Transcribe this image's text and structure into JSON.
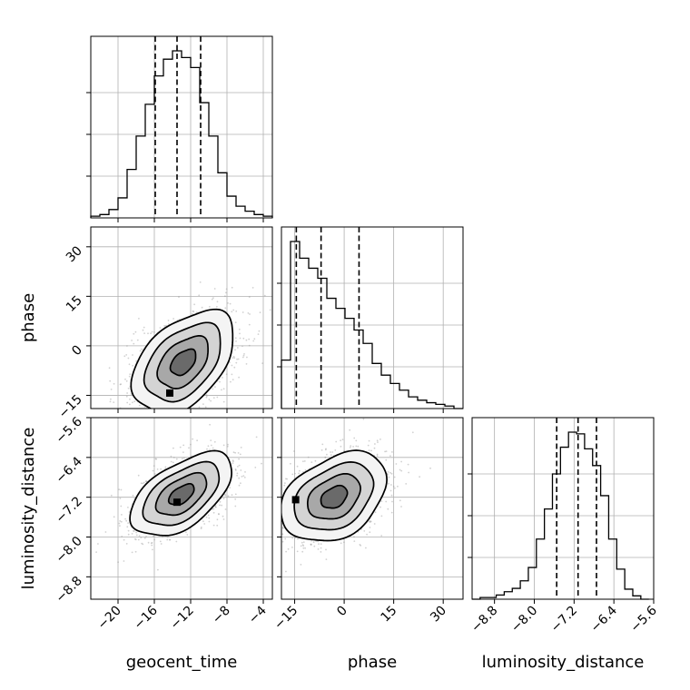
{
  "chart_data": {
    "type": "corner",
    "parameters": [
      "geocent_time",
      "phase",
      "luminosity_distance"
    ],
    "axis_ranges": {
      "geocent_time": [
        -23,
        -3
      ],
      "phase": [
        -19,
        36
      ],
      "luminosity_distance": [
        -9.25,
        -5.6
      ]
    },
    "ticks": {
      "geocent_time": [
        -20,
        -16,
        -12,
        -8,
        -4
      ],
      "phase": [
        -15,
        0,
        15,
        30
      ],
      "luminosity_distance": [
        -8.8,
        -8.0,
        -7.2,
        -6.4,
        -5.6
      ]
    },
    "tick_labels": {
      "geocent_time": [
        "−20",
        "−16",
        "−12",
        "−8",
        "−4"
      ],
      "phase": [
        "−15",
        "0",
        "15",
        "30"
      ],
      "luminosity_distance": [
        "−8.8",
        "−8.0",
        "−7.2",
        "−6.4",
        "−5.6"
      ]
    },
    "grid": true,
    "histograms": {
      "geocent_time": {
        "bin_edges": [
          -23,
          -22,
          -21,
          -20,
          -19,
          -18,
          -17,
          -16,
          -15,
          -14,
          -13,
          -12,
          -11,
          -10,
          -9,
          -8,
          -7,
          -6,
          -5,
          -4,
          -3
        ],
        "counts": [
          0.01,
          0.02,
          0.05,
          0.12,
          0.29,
          0.49,
          0.68,
          0.85,
          0.95,
          1.0,
          0.96,
          0.9,
          0.69,
          0.49,
          0.27,
          0.13,
          0.07,
          0.04,
          0.02,
          0.01
        ],
        "quantiles": [
          -15.9,
          -13.5,
          -10.9
        ]
      },
      "phase": {
        "bin_edges": [
          -19,
          -16.25,
          -13.5,
          -10.75,
          -8,
          -5.25,
          -2.5,
          0.25,
          3,
          5.75,
          8.5,
          11.25,
          14,
          16.75,
          19.5,
          22.25,
          25,
          27.75,
          30.5,
          33.25,
          36
        ],
        "counts": [
          0.29,
          1.0,
          0.9,
          0.84,
          0.78,
          0.66,
          0.6,
          0.54,
          0.47,
          0.39,
          0.27,
          0.2,
          0.15,
          0.11,
          0.07,
          0.05,
          0.035,
          0.025,
          0.015,
          0.0
        ],
        "quantiles": [
          -14.5,
          -7.0,
          4.5
        ]
      },
      "luminosity_distance": {
        "bin_edges": [
          -9.25,
          -9.0885,
          -8.927,
          -8.7655,
          -8.604,
          -8.4425,
          -8.281,
          -8.1195,
          -7.958,
          -7.7965,
          -7.635,
          -7.4735,
          -7.312,
          -7.1505,
          -6.989,
          -6.8275,
          -6.666,
          -6.5045,
          -6.343,
          -6.1815,
          -6.02,
          -5.8585,
          -5.697
        ],
        "counts": [
          0.0,
          0.01,
          0.01,
          0.025,
          0.045,
          0.065,
          0.11,
          0.19,
          0.36,
          0.54,
          0.75,
          0.91,
          1.0,
          0.99,
          0.9,
          0.8,
          0.62,
          0.36,
          0.18,
          0.06,
          0.02,
          0.0
        ],
        "quantiles": [
          -7.55,
          -7.12,
          -6.75
        ]
      }
    },
    "scatter_2d": {
      "phase_vs_geocent_time": {
        "x_param": "geocent_time",
        "y_param": "phase",
        "mean": [
          -12.8,
          -5.0
        ],
        "std": [
          2.8,
          7.8
        ],
        "correlation": 0.45,
        "mode": [
          -14.3,
          -14.3
        ]
      },
      "luminosity_distance_vs_geocent_time": {
        "x_param": "geocent_time",
        "y_param": "luminosity_distance",
        "mean": [
          -13.0,
          -7.15
        ],
        "std": [
          2.8,
          0.42
        ],
        "correlation": 0.55,
        "mode": [
          -13.5,
          -7.3
        ]
      },
      "luminosity_distance_vs_phase": {
        "x_param": "phase",
        "y_param": "luminosity_distance",
        "mean": [
          -3.0,
          -7.2
        ],
        "std": [
          8.0,
          0.45
        ],
        "correlation": 0.35,
        "mode": [
          -14.7,
          -7.25
        ]
      }
    },
    "contour_levels_sigma": [
      0.5,
      1.0,
      1.5,
      2.0
    ]
  }
}
